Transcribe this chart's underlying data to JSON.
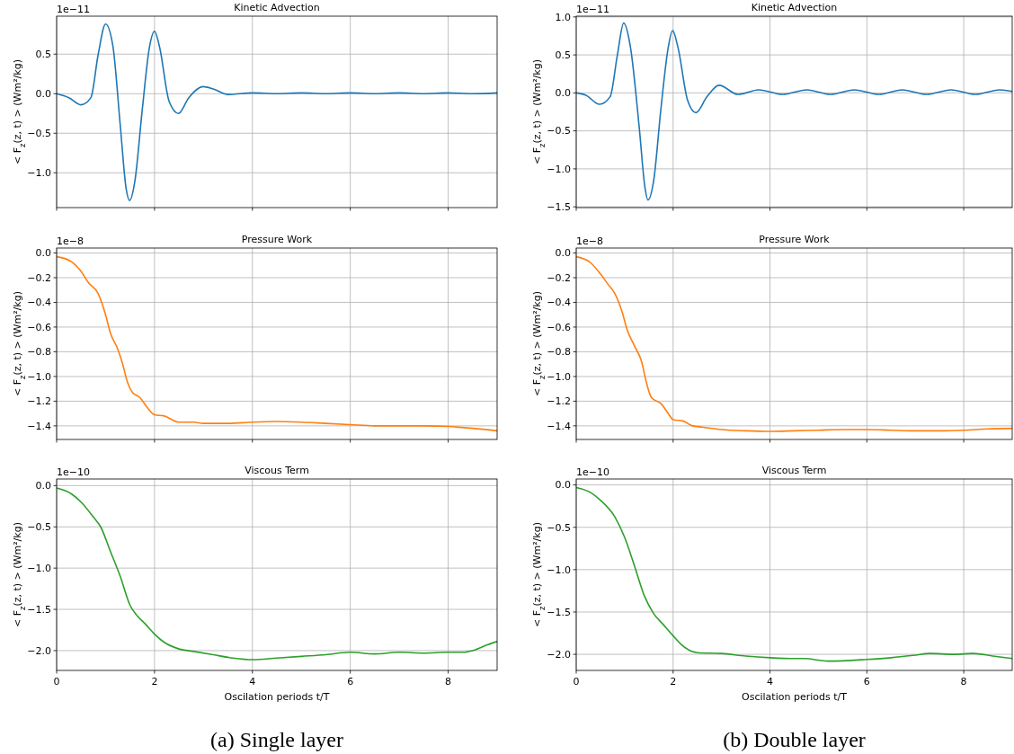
{
  "chart_data": [
    {
      "type": "line",
      "title": "Kinetic Advection",
      "ylabel": "< F$_{z}$(z, t) >  (Wm²/kg)",
      "annotations": [
        "1e−11"
      ],
      "xlim": [
        0,
        9
      ],
      "xticks": [
        0,
        2,
        4,
        6,
        8
      ],
      "ylim": [
        -1.44,
        0.98
      ],
      "yticks": [
        {
          "value": -1,
          "label": "−1.0"
        },
        {
          "value": -0.5,
          "label": "−0.5"
        },
        {
          "value": 0,
          "label": "0.0"
        },
        {
          "value": 0.5,
          "label": "0.5"
        }
      ],
      "grid": true,
      "tick_labels": "y",
      "series": [
        {
          "color": "#1f77b4",
          "x": [
            0,
            0.25,
            0.5,
            0.7,
            0.85,
            1.0,
            1.15,
            1.3,
            1.42,
            1.49,
            1.6,
            1.75,
            1.9,
            2.0,
            2.1,
            2.3,
            2.49,
            2.7,
            2.99,
            3.2,
            3.5,
            4,
            4.5,
            5,
            5.5,
            6,
            6.5,
            7,
            7.5,
            8,
            8.5,
            9
          ],
          "values": [
            0,
            -0.05,
            -0.14,
            -0.05,
            0.5,
            0.88,
            0.6,
            -0.4,
            -1.2,
            -1.35,
            -1.1,
            -0.2,
            0.6,
            0.79,
            0.6,
            -0.1,
            -0.25,
            -0.05,
            0.09,
            0.06,
            -0.01,
            0.01,
            0.0,
            0.01,
            0.0,
            0.01,
            0.0,
            0.01,
            0.0,
            0.01,
            0.0,
            0.01
          ]
        }
      ]
    },
    {
      "type": "line",
      "title": "Kinetic Advection",
      "ylabel": "< F$_{z}$(z, t) >  (Wm²/kg)",
      "annotations": [
        "1e−11"
      ],
      "xlim": [
        0,
        9
      ],
      "xticks": [
        0,
        2,
        4,
        6,
        8
      ],
      "ylim": [
        -1.51,
        1.01
      ],
      "yticks": [
        {
          "value": -1.5,
          "label": "−1.5"
        },
        {
          "value": -1,
          "label": "−1.0"
        },
        {
          "value": -0.5,
          "label": "−0.5"
        },
        {
          "value": 0,
          "label": "0.0"
        },
        {
          "value": 0.5,
          "label": "0.5"
        },
        {
          "value": 1,
          "label": "1.0"
        }
      ],
      "grid": true,
      "tick_labels": "y",
      "series": [
        {
          "color": "#1f77b4",
          "x": [
            0,
            0.2,
            0.48,
            0.7,
            0.85,
            0.98,
            1.12,
            1.3,
            1.42,
            1.48,
            1.6,
            1.75,
            1.9,
            1.99,
            2.1,
            2.3,
            2.47,
            2.7,
            2.95,
            3.34,
            3.77,
            4.26,
            4.76,
            5.25,
            5.74,
            6.25,
            6.73,
            7.23,
            7.74,
            8.24,
            8.74,
            9
          ],
          "values": [
            0,
            -0.03,
            -0.15,
            -0.05,
            0.5,
            0.92,
            0.6,
            -0.45,
            -1.25,
            -1.41,
            -1.15,
            -0.2,
            0.6,
            0.82,
            0.6,
            -0.1,
            -0.26,
            -0.05,
            0.1,
            -0.02,
            0.04,
            -0.02,
            0.04,
            -0.02,
            0.04,
            -0.02,
            0.04,
            -0.02,
            0.04,
            -0.02,
            0.04,
            0.02
          ]
        }
      ]
    },
    {
      "type": "line",
      "title": "Pressure Work",
      "ylabel": "< F$_{z}$(z, t) >  (Wm²/kg)",
      "annotations": [
        "1e−8"
      ],
      "xlim": [
        0,
        9
      ],
      "xticks": [
        0,
        2,
        4,
        6,
        8
      ],
      "ylim": [
        -1.51,
        0.04
      ],
      "yticks": [
        {
          "value": -1.4,
          "label": "−1.4"
        },
        {
          "value": -1.2,
          "label": "−1.2"
        },
        {
          "value": -1,
          "label": "−1.0"
        },
        {
          "value": -0.8,
          "label": "−0.8"
        },
        {
          "value": -0.6,
          "label": "−0.6"
        },
        {
          "value": -0.4,
          "label": "−0.4"
        },
        {
          "value": -0.2,
          "label": "−0.2"
        },
        {
          "value": 0,
          "label": "0.0"
        }
      ],
      "grid": true,
      "tick_labels": "y",
      "series": [
        {
          "color": "#ff7f0e",
          "x": [
            0,
            0.3,
            0.5,
            0.65,
            0.85,
            1.0,
            1.1,
            1.25,
            1.35,
            1.45,
            1.55,
            1.7,
            1.85,
            2.0,
            2.2,
            2.5,
            2.8,
            3.0,
            3.5,
            4.0,
            4.5,
            5.0,
            5.5,
            6.0,
            6.5,
            7.0,
            7.5,
            8.0,
            8.5,
            9.0
          ],
          "values": [
            -0.03,
            -0.07,
            -0.15,
            -0.24,
            -0.33,
            -0.5,
            -0.65,
            -0.78,
            -0.9,
            -1.05,
            -1.13,
            -1.17,
            -1.25,
            -1.31,
            -1.32,
            -1.37,
            -1.37,
            -1.38,
            -1.38,
            -1.37,
            -1.365,
            -1.37,
            -1.38,
            -1.39,
            -1.4,
            -1.4,
            -1.4,
            -1.405,
            -1.42,
            -1.44
          ]
        }
      ]
    },
    {
      "type": "line",
      "title": "Pressure Work",
      "ylabel": "< F$_{z}$(z, t) >  (Wm²/kg)",
      "annotations": [
        "1e−8"
      ],
      "xlim": [
        0,
        9
      ],
      "xticks": [
        0,
        2,
        4,
        6,
        8
      ],
      "ylim": [
        -1.51,
        0.04
      ],
      "yticks": [
        {
          "value": -1.4,
          "label": "−1.4"
        },
        {
          "value": -1.2,
          "label": "−1.2"
        },
        {
          "value": -1,
          "label": "−1.0"
        },
        {
          "value": -0.8,
          "label": "−0.8"
        },
        {
          "value": -0.6,
          "label": "−0.6"
        },
        {
          "value": -0.4,
          "label": "−0.4"
        },
        {
          "value": -0.2,
          "label": "−0.2"
        },
        {
          "value": 0,
          "label": "0.0"
        }
      ],
      "grid": true,
      "tick_labels": "y",
      "series": [
        {
          "color": "#ff7f0e",
          "x": [
            0,
            0.3,
            0.5,
            0.65,
            0.8,
            0.95,
            1.05,
            1.2,
            1.35,
            1.45,
            1.55,
            1.75,
            1.9,
            2.0,
            2.2,
            2.4,
            2.6,
            3.0,
            3.5,
            4.0,
            4.5,
            5.0,
            5.5,
            6.0,
            6.5,
            7.0,
            7.5,
            8.0,
            8.5,
            9.0
          ],
          "values": [
            -0.03,
            -0.08,
            -0.17,
            -0.25,
            -0.33,
            -0.48,
            -0.62,
            -0.75,
            -0.88,
            -1.05,
            -1.17,
            -1.22,
            -1.3,
            -1.35,
            -1.36,
            -1.4,
            -1.41,
            -1.43,
            -1.44,
            -1.445,
            -1.44,
            -1.435,
            -1.43,
            -1.43,
            -1.435,
            -1.44,
            -1.44,
            -1.435,
            -1.425,
            -1.42
          ]
        }
      ]
    },
    {
      "type": "line",
      "title": "Viscous Term",
      "xlabel": "Oscilation periods t/T",
      "ylabel": "< F$_{z}$(z, t) >  (Wm²/kg)",
      "annotations": [
        "1e−10",
        "(a) Single layer"
      ],
      "xlim": [
        0,
        9
      ],
      "xticks": [
        0,
        2,
        4,
        6,
        8
      ],
      "ylim": [
        -2.24,
        0.08
      ],
      "yticks": [
        {
          "value": -2,
          "label": "−2.0"
        },
        {
          "value": -1.5,
          "label": "−1.5"
        },
        {
          "value": -1,
          "label": "−1.0"
        },
        {
          "value": -0.5,
          "label": "−0.5"
        },
        {
          "value": 0,
          "label": "0.0"
        }
      ],
      "grid": true,
      "series": [
        {
          "color": "#2ca02c",
          "x": [
            0,
            0.3,
            0.5,
            0.75,
            0.9,
            1.1,
            1.3,
            1.5,
            1.65,
            1.8,
            2.0,
            2.2,
            2.5,
            2.8,
            3.2,
            3.6,
            4.0,
            4.5,
            5.0,
            5.5,
            6.0,
            6.5,
            7.0,
            7.5,
            8.0,
            8.3,
            8.5,
            8.8,
            9.0
          ],
          "values": [
            -0.03,
            -0.1,
            -0.2,
            -0.38,
            -0.5,
            -0.8,
            -1.1,
            -1.45,
            -1.58,
            -1.67,
            -1.8,
            -1.9,
            -1.98,
            -2.01,
            -2.05,
            -2.09,
            -2.11,
            -2.09,
            -2.07,
            -2.05,
            -2.02,
            -2.04,
            -2.02,
            -2.03,
            -2.02,
            -2.02,
            -2.0,
            -1.93,
            -1.89
          ]
        }
      ]
    },
    {
      "type": "line",
      "title": "Viscous Term",
      "xlabel": "Oscilation periods t/T",
      "ylabel": "< F$_{z}$(z, t) >  (Wm²/kg)",
      "annotations": [
        "1e−10",
        "(b) Double layer"
      ],
      "xlim": [
        0,
        9
      ],
      "xticks": [
        0,
        2,
        4,
        6,
        8
      ],
      "ylim": [
        -2.19,
        0.07
      ],
      "yticks": [
        {
          "value": -2,
          "label": "−2.0"
        },
        {
          "value": -1.5,
          "label": "−1.5"
        },
        {
          "value": -1,
          "label": "−1.0"
        },
        {
          "value": -0.5,
          "label": "−0.5"
        },
        {
          "value": 0,
          "label": "0.0"
        }
      ],
      "grid": true,
      "series": [
        {
          "color": "#2ca02c",
          "x": [
            0,
            0.3,
            0.5,
            0.8,
            1.0,
            1.2,
            1.4,
            1.6,
            1.8,
            2.0,
            2.2,
            2.5,
            3.0,
            3.5,
            4.0,
            4.5,
            4.7,
            5.2,
            6.0,
            6.5,
            7.0,
            7.3,
            7.8,
            8.2,
            8.6,
            9.0
          ],
          "values": [
            -0.03,
            -0.09,
            -0.18,
            -0.38,
            -0.62,
            -0.95,
            -1.3,
            -1.52,
            -1.65,
            -1.78,
            -1.9,
            -1.98,
            -1.99,
            -2.02,
            -2.04,
            -2.05,
            -2.05,
            -2.08,
            -2.06,
            -2.04,
            -2.01,
            -1.99,
            -2.0,
            -1.99,
            -2.02,
            -2.05
          ]
        }
      ]
    }
  ]
}
